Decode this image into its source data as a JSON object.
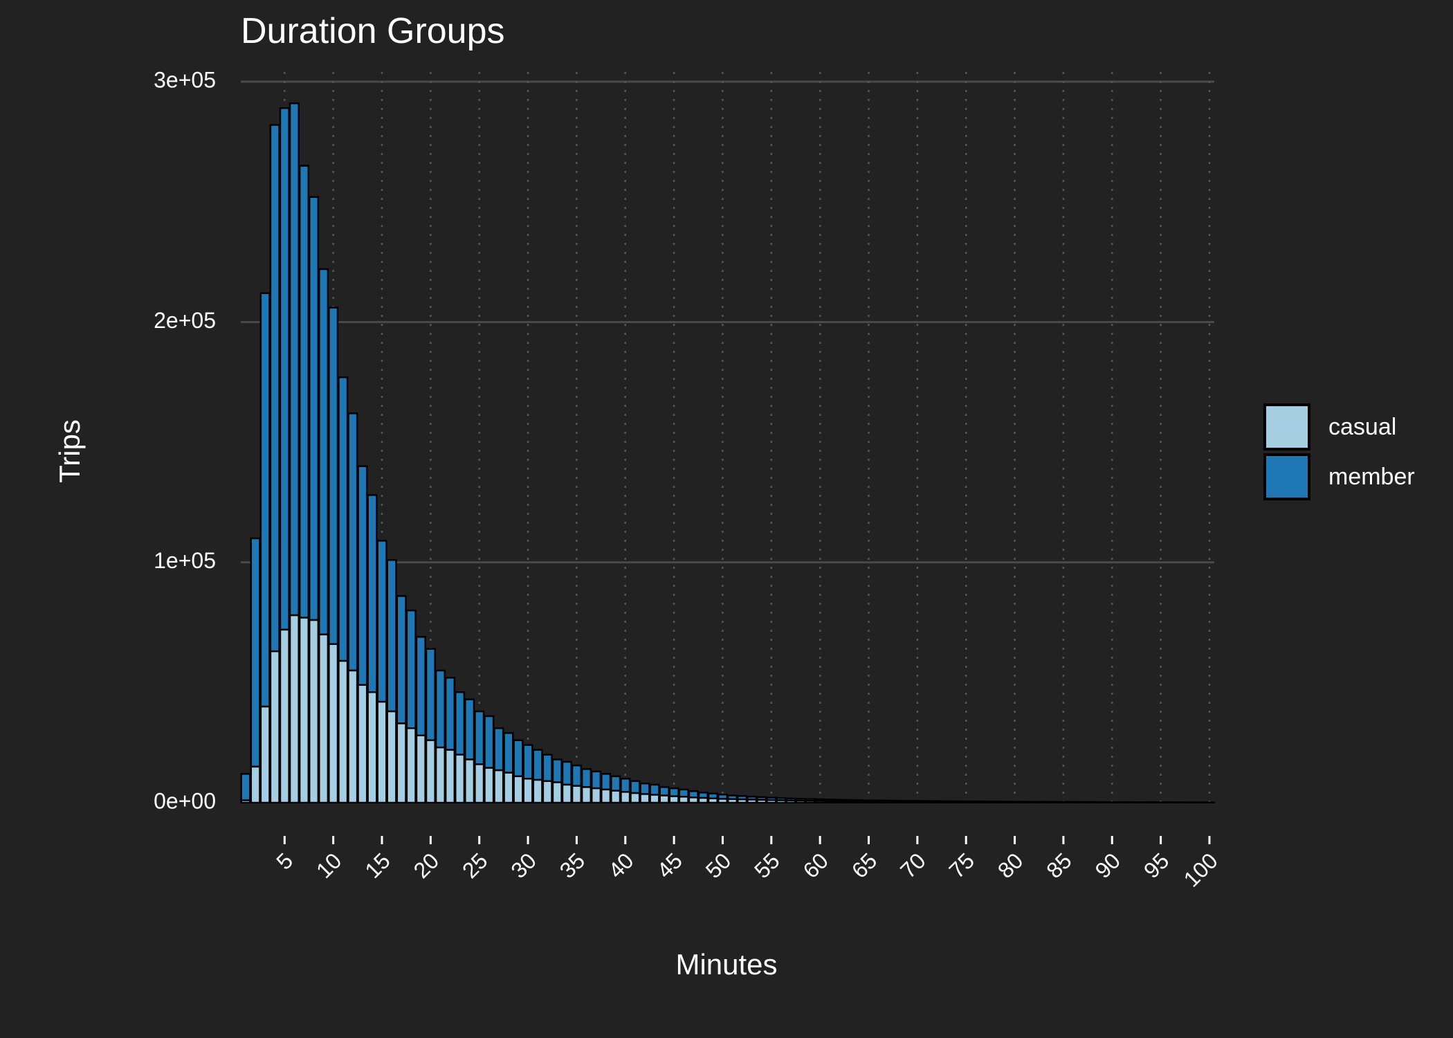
{
  "chart_data": {
    "type": "bar",
    "stacked": true,
    "title": "Duration Groups",
    "xlabel": "Minutes",
    "ylabel": "Trips",
    "x_tick_labels": [
      "5",
      "10",
      "15",
      "20",
      "25",
      "30",
      "35",
      "40",
      "45",
      "50",
      "55",
      "60",
      "65",
      "70",
      "75",
      "80",
      "85",
      "90",
      "95",
      "100"
    ],
    "y_tick_labels": [
      "0e+00",
      "1e+05",
      "2e+05",
      "3e+05"
    ],
    "y_ticks": [
      0,
      100000,
      200000,
      300000
    ],
    "x_ticks": [
      5,
      10,
      15,
      20,
      25,
      30,
      35,
      40,
      45,
      50,
      55,
      60,
      65,
      70,
      75,
      80,
      85,
      90,
      95,
      100
    ],
    "xlim": [
      0.5,
      100.5
    ],
    "ylim": [
      0,
      300000
    ],
    "grid": true,
    "legend_position": "right",
    "x": [
      1,
      2,
      3,
      4,
      5,
      6,
      7,
      8,
      9,
      10,
      11,
      12,
      13,
      14,
      15,
      16,
      17,
      18,
      19,
      20,
      21,
      22,
      23,
      24,
      25,
      26,
      27,
      28,
      29,
      30,
      31,
      32,
      33,
      34,
      35,
      36,
      37,
      38,
      39,
      40,
      41,
      42,
      43,
      44,
      45,
      46,
      47,
      48,
      49,
      50,
      51,
      52,
      53,
      54,
      55,
      56,
      57,
      58,
      59,
      60,
      61,
      62,
      63,
      64,
      65,
      66,
      67,
      68,
      69,
      70,
      71,
      72,
      73,
      74,
      75,
      76,
      77,
      78,
      79,
      80,
      81,
      82,
      83,
      84,
      85,
      86,
      87,
      88,
      89,
      90,
      91,
      92,
      93,
      94,
      95,
      96,
      97,
      98,
      99,
      100
    ],
    "series": [
      {
        "name": "casual",
        "color": "#a6cee3",
        "values": [
          1000,
          15000,
          40000,
          63000,
          72000,
          78000,
          77000,
          76000,
          70000,
          66000,
          59000,
          55000,
          49000,
          46000,
          42000,
          38000,
          33000,
          31000,
          28000,
          26000,
          23000,
          22000,
          20000,
          18000,
          16000,
          14500,
          13500,
          12500,
          11000,
          10000,
          9500,
          9000,
          8500,
          7500,
          7000,
          6500,
          6000,
          5500,
          5000,
          4500,
          4000,
          3600,
          3300,
          3000,
          2700,
          2500,
          2200,
          2000,
          1800,
          1600,
          1500,
          1400,
          1300,
          1200,
          1100,
          1000,
          900,
          850,
          800,
          750,
          700,
          650,
          600,
          550,
          500,
          480,
          460,
          440,
          420,
          400,
          380,
          360,
          340,
          320,
          300,
          290,
          280,
          270,
          260,
          250,
          240,
          230,
          220,
          210,
          200,
          190,
          180,
          170,
          160,
          150,
          140,
          130,
          120,
          110,
          100,
          95,
          90,
          85,
          80,
          75
        ]
      },
      {
        "name": "member",
        "color": "#1f78b4",
        "values": [
          11000,
          95000,
          172000,
          219000,
          217000,
          213000,
          188000,
          176000,
          152000,
          140000,
          118000,
          107000,
          91000,
          82000,
          67000,
          63000,
          53000,
          49000,
          41000,
          38000,
          32000,
          30000,
          26000,
          25000,
          22000,
          21500,
          17500,
          16500,
          15000,
          14000,
          12500,
          11000,
          9500,
          9500,
          8500,
          7500,
          7000,
          6500,
          6000,
          5500,
          5000,
          4400,
          4200,
          3500,
          3300,
          3000,
          2600,
          2200,
          2000,
          1800,
          1500,
          1400,
          1200,
          1100,
          1000,
          950,
          850,
          800,
          750,
          700,
          650,
          600,
          550,
          500,
          480,
          450,
          420,
          400,
          380,
          350,
          330,
          310,
          290,
          270,
          250,
          240,
          230,
          220,
          210,
          200,
          190,
          180,
          170,
          160,
          150,
          140,
          130,
          120,
          110,
          100,
          95,
          90,
          85,
          80,
          75,
          70,
          65,
          60,
          55,
          50
        ]
      }
    ]
  }
}
